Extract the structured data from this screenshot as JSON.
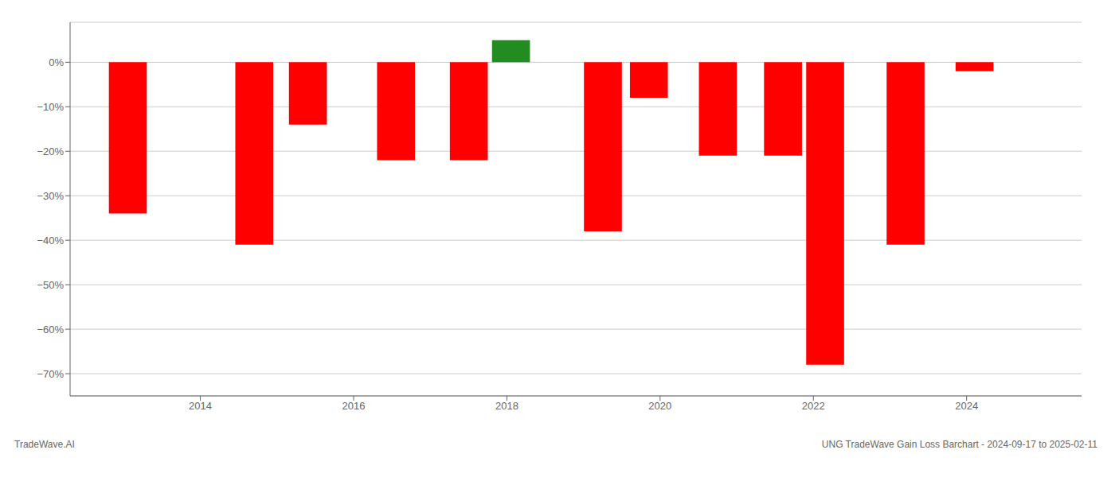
{
  "chart_data": {
    "type": "bar",
    "title": "UNG TradeWave Gain Loss Barchart - 2024-09-17 to 2025-02-11",
    "annotations": [
      "TradeWave.AI"
    ],
    "x": [
      2013.05,
      2014.7,
      2015.4,
      2016.55,
      2017.5,
      2018.05,
      2019.25,
      2019.85,
      2020.75,
      2021.6,
      2022.15,
      2023.2,
      2024.1
    ],
    "values": [
      -0.34,
      -0.41,
      -0.14,
      -0.22,
      -0.22,
      0.05,
      -0.38,
      -0.08,
      -0.21,
      -0.21,
      -0.68,
      -0.41,
      -0.02
    ],
    "colors": [
      "#ff0000",
      "#ff0000",
      "#ff0000",
      "#ff0000",
      "#ff0000",
      "#228B22",
      "#ff0000",
      "#ff0000",
      "#ff0000",
      "#ff0000",
      "#ff0000",
      "#ff0000",
      "#ff0000"
    ],
    "xlim": [
      2012.3,
      2025.5
    ],
    "xticks": [
      2014,
      2016,
      2018,
      2020,
      2022,
      2024
    ],
    "ylim": [
      -0.75,
      0.09
    ],
    "yticks": [
      {
        "value": 0.0,
        "label": "0%"
      },
      {
        "value": -0.1,
        "label": "−10%"
      },
      {
        "value": -0.2,
        "label": "−20%"
      },
      {
        "value": -0.3,
        "label": "−30%"
      },
      {
        "value": -0.4,
        "label": "−40%"
      },
      {
        "value": -0.5,
        "label": "−50%"
      },
      {
        "value": -0.6,
        "label": "−60%"
      },
      {
        "value": -0.7,
        "label": "−70%"
      }
    ],
    "grid": true
  }
}
